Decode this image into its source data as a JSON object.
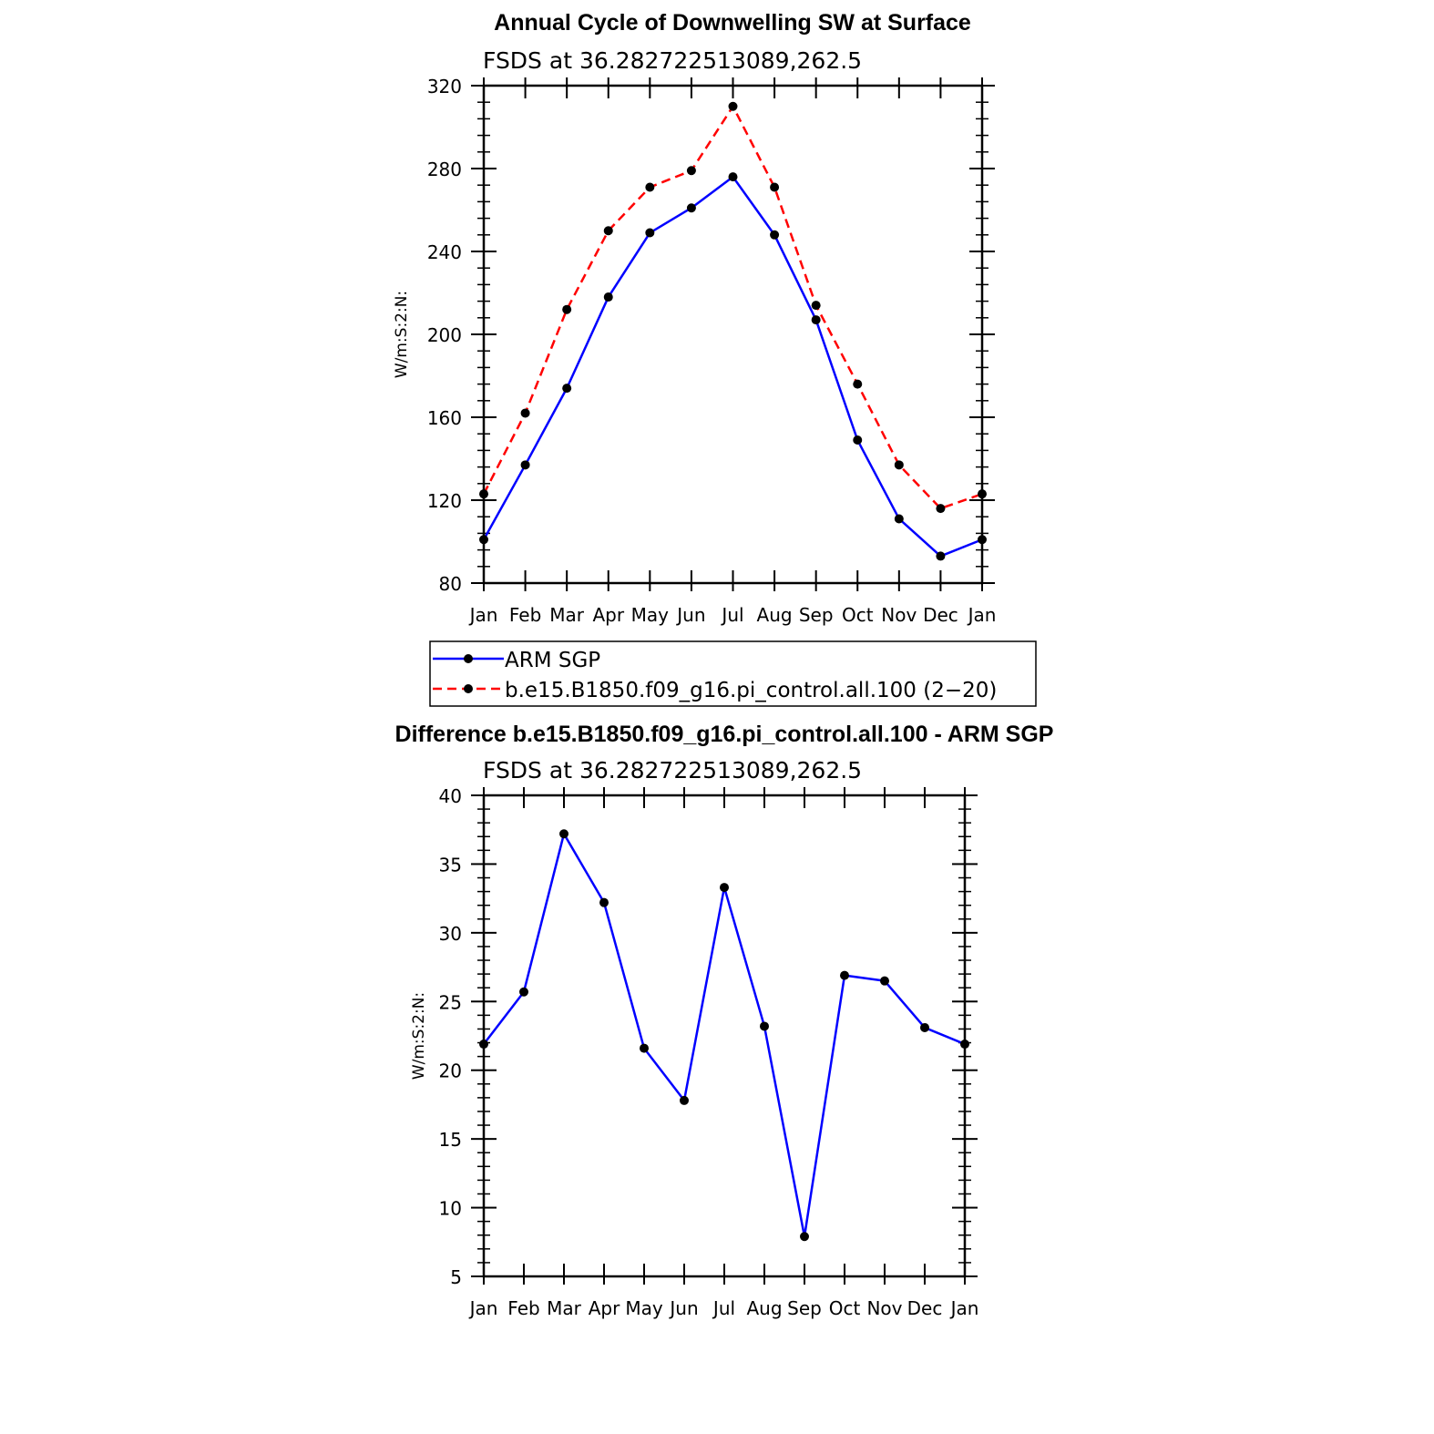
{
  "chart_data": [
    {
      "type": "line",
      "title": "Annual Cycle of Downwelling SW at Surface",
      "subtitle": "FSDS at 36.282722513089,262.5",
      "ylabel": "W/m:S:2:N:",
      "xlabel": "",
      "categories": [
        "Jan",
        "Feb",
        "Mar",
        "Apr",
        "May",
        "Jun",
        "Jul",
        "Aug",
        "Sep",
        "Oct",
        "Nov",
        "Dec",
        "Jan"
      ],
      "ylim": [
        80,
        320
      ],
      "yticks": [
        80,
        120,
        160,
        200,
        240,
        280,
        320
      ],
      "series": [
        {
          "name": "ARM SGP",
          "color": "#0000ff",
          "dash": "solid",
          "values": [
            101,
            137,
            174,
            218,
            249,
            261,
            276,
            248,
            207,
            149,
            111,
            93,
            101
          ]
        },
        {
          "name": "b.e15.B1850.f09_g16.pi_control.all.100 (2−20)",
          "color": "#ff0000",
          "dash": "dashed",
          "values": [
            123,
            162,
            212,
            250,
            271,
            279,
            310,
            271,
            214,
            176,
            137,
            116,
            123
          ]
        }
      ],
      "legend": "below"
    },
    {
      "type": "line",
      "title": "Difference b.e15.B1850.f09_g16.pi_control.all.100 - ARM SGP",
      "subtitle": "FSDS at 36.282722513089,262.5",
      "ylabel": "W/m:S:2:N:",
      "xlabel": "",
      "categories": [
        "Jan",
        "Feb",
        "Mar",
        "Apr",
        "May",
        "Jun",
        "Jul",
        "Aug",
        "Sep",
        "Oct",
        "Nov",
        "Dec",
        "Jan"
      ],
      "ylim": [
        5,
        40
      ],
      "yticks": [
        5,
        10,
        15,
        20,
        25,
        30,
        35,
        40
      ],
      "series": [
        {
          "color": "#0000ff",
          "dash": "solid",
          "values": [
            21.9,
            25.7,
            37.2,
            32.2,
            21.6,
            17.8,
            33.3,
            23.2,
            7.9,
            26.9,
            26.5,
            23.1,
            21.9
          ]
        }
      ]
    }
  ]
}
